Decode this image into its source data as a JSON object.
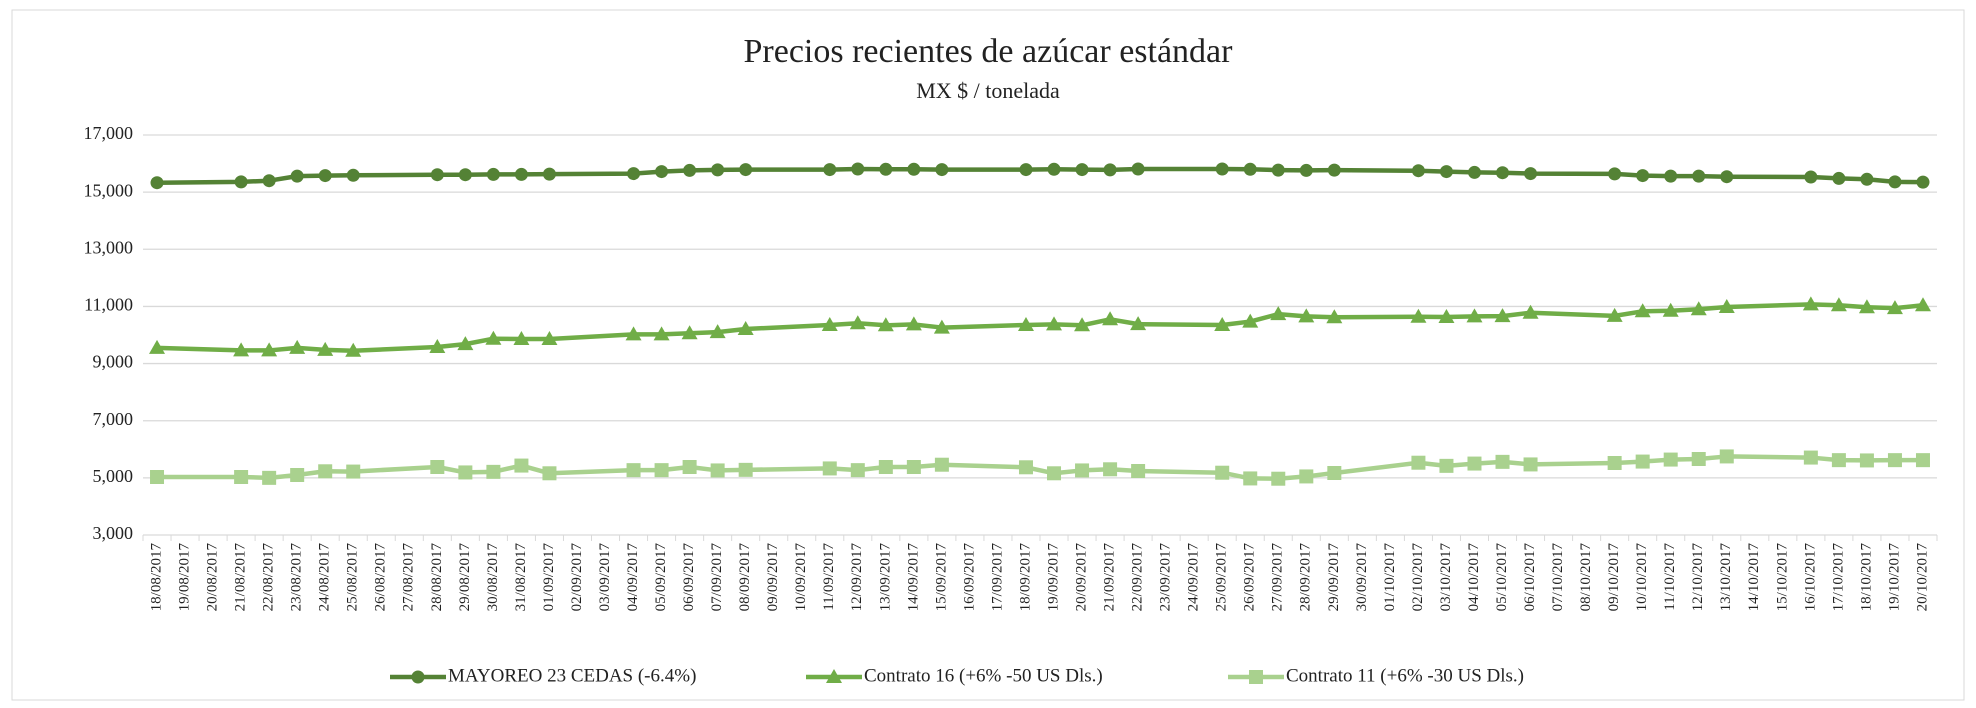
{
  "chart_data": {
    "type": "line",
    "title": "Precios recientes de azúcar estándar",
    "subtitle": "MX $ / tonelada",
    "title_color": "#2e9a22",
    "grid": true,
    "legend": "bottom",
    "ylim": [
      3000,
      17000
    ],
    "yticks": [
      {
        "value": 3000,
        "label": "3,000"
      },
      {
        "value": 5000,
        "label": "5,000"
      },
      {
        "value": 7000,
        "label": "7,000"
      },
      {
        "value": 9000,
        "label": "9,000"
      },
      {
        "value": 11000,
        "label": "11,000"
      },
      {
        "value": 13000,
        "label": "13,000"
      },
      {
        "value": 15000,
        "label": "15,000"
      },
      {
        "value": 17000,
        "label": "17,000"
      }
    ],
    "xticks": [
      "18/08/2017",
      "19/08/2017",
      "20/08/2017",
      "21/08/2017",
      "22/08/2017",
      "23/08/2017",
      "24/08/2017",
      "25/08/2017",
      "26/08/2017",
      "27/08/2017",
      "28/08/2017",
      "29/08/2017",
      "30/08/2017",
      "31/08/2017",
      "01/09/2017",
      "02/09/2017",
      "03/09/2017",
      "04/09/2017",
      "05/09/2017",
      "06/09/2017",
      "07/09/2017",
      "08/09/2017",
      "09/09/2017",
      "10/09/2017",
      "11/09/2017",
      "12/09/2017",
      "13/09/2017",
      "14/09/2017",
      "15/09/2017",
      "16/09/2017",
      "17/09/2017",
      "18/09/2017",
      "19/09/2017",
      "20/09/2017",
      "21/09/2017",
      "22/09/2017",
      "23/09/2017",
      "24/09/2017",
      "25/09/2017",
      "26/09/2017",
      "27/09/2017",
      "28/09/2017",
      "29/09/2017",
      "30/09/2017",
      "01/10/2017",
      "02/10/2017",
      "03/10/2017",
      "04/10/2017",
      "05/10/2017",
      "06/10/2017",
      "07/10/2017",
      "08/10/2017",
      "09/10/2017",
      "10/10/2017",
      "11/10/2017",
      "12/10/2017",
      "13/10/2017",
      "14/10/2017",
      "15/10/2017",
      "16/10/2017",
      "17/10/2017",
      "18/10/2017",
      "19/10/2017",
      "20/10/2017"
    ],
    "x": [
      "18/08/2017",
      "21/08/2017",
      "22/08/2017",
      "23/08/2017",
      "24/08/2017",
      "25/08/2017",
      "28/08/2017",
      "29/08/2017",
      "30/08/2017",
      "31/08/2017",
      "01/09/2017",
      "04/09/2017",
      "05/09/2017",
      "06/09/2017",
      "07/09/2017",
      "08/09/2017",
      "11/09/2017",
      "12/09/2017",
      "13/09/2017",
      "14/09/2017",
      "15/09/2017",
      "18/09/2017",
      "19/09/2017",
      "20/09/2017",
      "21/09/2017",
      "22/09/2017",
      "25/09/2017",
      "26/09/2017",
      "27/09/2017",
      "28/09/2017",
      "29/09/2017",
      "02/10/2017",
      "03/10/2017",
      "04/10/2017",
      "05/10/2017",
      "06/10/2017",
      "09/10/2017",
      "10/10/2017",
      "11/10/2017",
      "12/10/2017",
      "13/10/2017",
      "16/10/2017",
      "17/10/2017",
      "18/10/2017",
      "19/10/2017",
      "20/10/2017"
    ],
    "series": [
      {
        "name": "MAYOREO 23 CEDAS (-6.4%)",
        "color": "#548235",
        "marker": "circle",
        "values": [
          15330,
          15360,
          15400,
          15560,
          15580,
          15590,
          15610,
          15610,
          15620,
          15620,
          15630,
          15650,
          15720,
          15760,
          15780,
          15790,
          15790,
          15810,
          15800,
          15800,
          15790,
          15790,
          15800,
          15790,
          15780,
          15810,
          15810,
          15800,
          15770,
          15760,
          15770,
          15750,
          15720,
          15690,
          15680,
          15650,
          15640,
          15580,
          15560,
          15560,
          15540,
          15530,
          15480,
          15450,
          15360,
          15350
        ]
      },
      {
        "name": "Contrato 16 (+6% -50 US Dls.)",
        "color": "#70ad47",
        "marker": "triangle",
        "values": [
          9550,
          9460,
          9460,
          9550,
          9480,
          9450,
          9580,
          9680,
          9870,
          9860,
          9860,
          10020,
          10020,
          10060,
          10100,
          10210,
          10350,
          10410,
          10340,
          10370,
          10260,
          10350,
          10370,
          10340,
          10550,
          10380,
          10350,
          10470,
          10730,
          10650,
          10620,
          10640,
          10630,
          10650,
          10660,
          10780,
          10670,
          10830,
          10850,
          10900,
          10980,
          11070,
          11040,
          10970,
          10940,
          11040
        ]
      },
      {
        "name": "Contrato 11 (+6% -30 US Dls.)",
        "color": "#a9d18e",
        "marker": "square",
        "values": [
          5030,
          5030,
          5000,
          5100,
          5230,
          5220,
          5380,
          5190,
          5210,
          5430,
          5160,
          5270,
          5270,
          5380,
          5260,
          5280,
          5330,
          5270,
          5380,
          5380,
          5460,
          5370,
          5160,
          5260,
          5300,
          5240,
          5180,
          4980,
          4970,
          5050,
          5170,
          5530,
          5420,
          5500,
          5560,
          5470,
          5520,
          5570,
          5640,
          5660,
          5750,
          5710,
          5620,
          5610,
          5620,
          5620
        ]
      }
    ]
  }
}
